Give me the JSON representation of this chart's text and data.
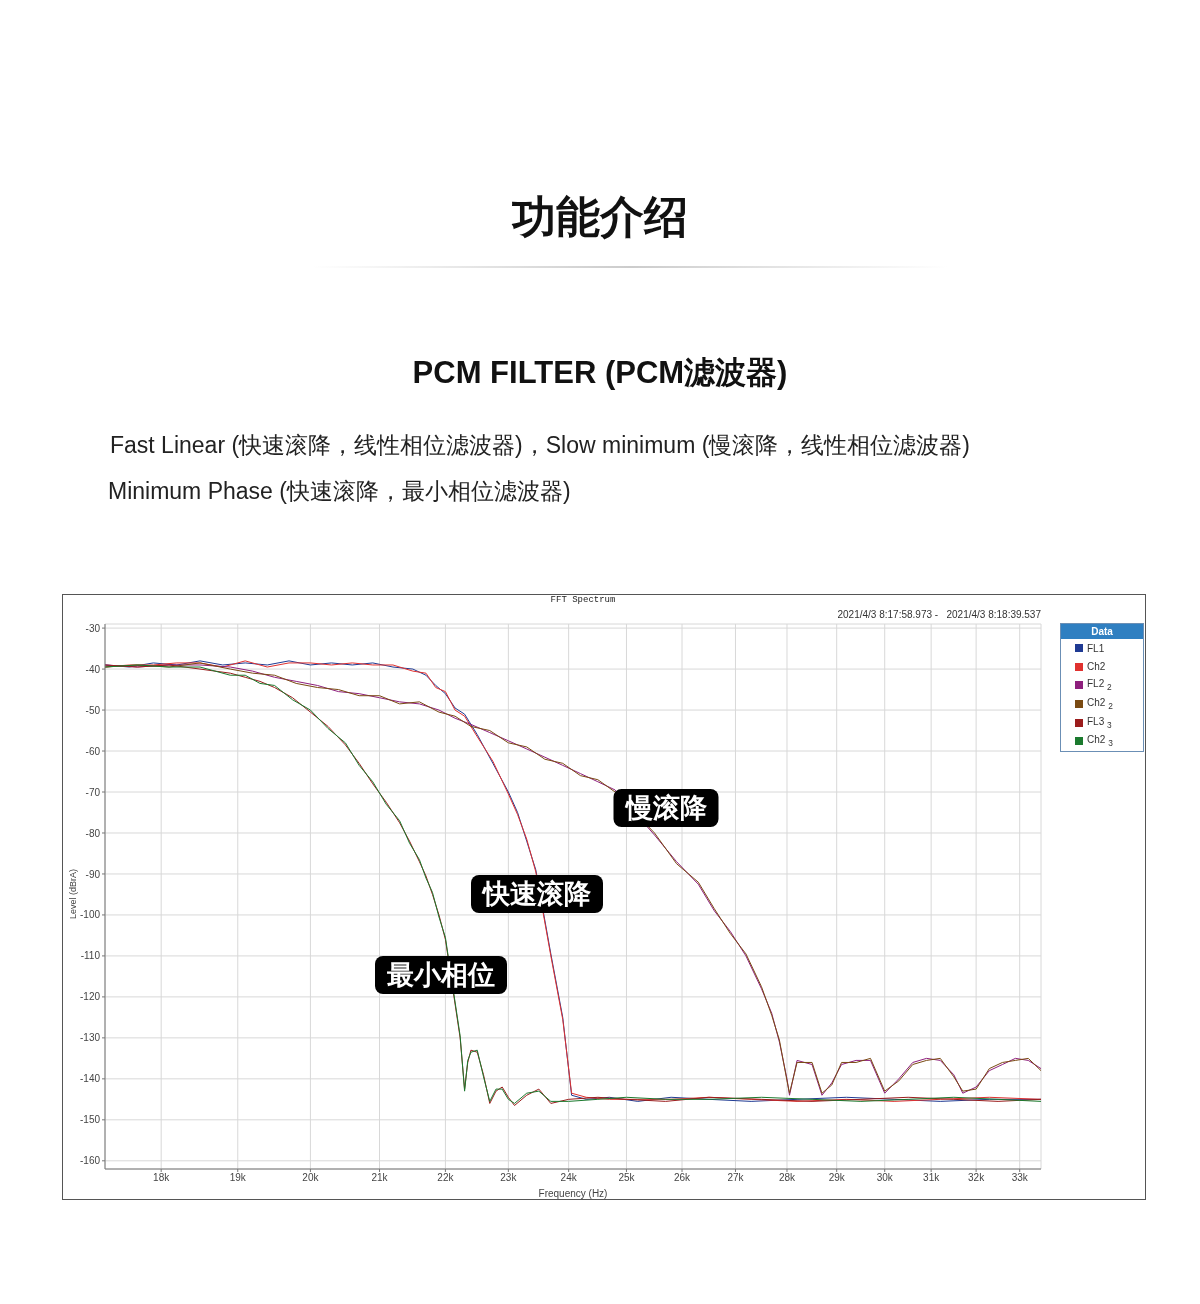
{
  "chart_data": {
    "type": "line",
    "title": "功能介绍",
    "subtitle": "PCM FILTER (PCM滤波器)",
    "xlabel": "Frequency (Hz)",
    "ylabel": "Level (dBrA)",
    "legend_title": "Data",
    "legend": "top right",
    "grid": true,
    "log": "x",
    "xlim": [
      17300,
      33500
    ],
    "xticks": [
      {
        "value": 18000,
        "label": "18k"
      },
      {
        "value": 19000,
        "label": "19k"
      },
      {
        "value": 20000,
        "label": "20k"
      },
      {
        "value": 21000,
        "label": "21k"
      },
      {
        "value": 22000,
        "label": "22k"
      },
      {
        "value": 23000,
        "label": "23k"
      },
      {
        "value": 24000,
        "label": "24k"
      },
      {
        "value": 25000,
        "label": "25k"
      },
      {
        "value": 26000,
        "label": "26k"
      },
      {
        "value": 27000,
        "label": "27k"
      },
      {
        "value": 28000,
        "label": "28k"
      },
      {
        "value": 29000,
        "label": "29k"
      },
      {
        "value": 30000,
        "label": "30k"
      },
      {
        "value": 31000,
        "label": "31k"
      },
      {
        "value": 32000,
        "label": "32k"
      },
      {
        "value": 33000,
        "label": "33k"
      }
    ],
    "ylim": [
      -162,
      -29
    ],
    "yticks": [
      -160,
      -150,
      -140,
      -130,
      -120,
      -110,
      -100,
      -90,
      -80,
      -70,
      -60,
      -50,
      -40,
      -30
    ],
    "annotations": [
      "Fast Linear (快速滚降，线性相位滤波器)，Slow minimum (慢滚降，线性相位滤波器)",
      "Minimum Phase (快速滚降，最小相位滤波器)",
      "FFT Spectrum",
      "2021/4/3 8:17:58.973 -   2021/4/3 8:18:39.537",
      "慢滚降",
      "快速滚降",
      "最小相位"
    ],
    "series": [
      {
        "name": "FL1",
        "color": "#1f3a93",
        "x": [
          17300,
          17600,
          17900,
          18200,
          18500,
          18800,
          19100,
          19400,
          19700,
          20000,
          20300,
          20600,
          20900,
          21200,
          21500,
          21700,
          21850,
          22000,
          22150,
          22300,
          22500,
          22750,
          23000,
          23150,
          23300,
          23450,
          23700,
          23900,
          24050,
          24300,
          24700,
          25200,
          25800,
          26500,
          27300,
          28200,
          29200,
          30200,
          31200,
          32300,
          33500
        ],
        "values": [
          -39,
          -39.5,
          -38.5,
          -39,
          -38,
          -39,
          -38.5,
          -39,
          -38,
          -39,
          -38.5,
          -39,
          -38.5,
          -39.5,
          -40,
          -41.5,
          -44,
          -46,
          -49.5,
          -51,
          -56,
          -63,
          -70,
          -75,
          -82,
          -89,
          -109.5,
          -125,
          -144,
          -145,
          -144.5,
          -145.5,
          -144.5,
          -145,
          -145.5,
          -145,
          -144.5,
          -145,
          -145.5,
          -145,
          -145
        ]
      },
      {
        "name": "Ch2",
        "color": "#e0312f",
        "x": [
          17300,
          17600,
          17900,
          18200,
          18500,
          18800,
          19100,
          19400,
          19700,
          20000,
          20300,
          20600,
          20900,
          21200,
          21500,
          21700,
          21850,
          22000,
          22150,
          22300,
          22500,
          22750,
          23000,
          23150,
          23300,
          23450,
          23700,
          23900,
          24050,
          24300,
          24700,
          25200,
          25800,
          26500,
          27300,
          28200,
          29200,
          30200,
          31200,
          32300,
          33500
        ],
        "values": [
          -39.5,
          -39,
          -39,
          -38.5,
          -38.5,
          -39.5,
          -38,
          -39.5,
          -38.5,
          -38.5,
          -39,
          -38.5,
          -39,
          -39,
          -40.5,
          -41,
          -44.5,
          -45.5,
          -50,
          -51.5,
          -56.5,
          -62.5,
          -70.5,
          -75.5,
          -81.5,
          -89.5,
          -110,
          -125.5,
          -143.5,
          -144.5,
          -145,
          -145,
          -145,
          -144.5,
          -145,
          -145.5,
          -145,
          -145.5,
          -145,
          -144.5,
          -145
        ]
      },
      {
        "name": "FL2 $_{2}$",
        "color": "#8e1f7d",
        "x": [
          17300,
          17700,
          18100,
          18500,
          18900,
          19200,
          19500,
          19800,
          20100,
          20400,
          20700,
          21000,
          21300,
          21600,
          21900,
          22150,
          22400,
          22700,
          23000,
          23300,
          23600,
          23900,
          24200,
          24500,
          24800,
          25500,
          25900,
          26300,
          26600,
          26900,
          27200,
          27500,
          27700,
          27850,
          28000,
          28050,
          28200,
          28500,
          28700,
          28900,
          29100,
          29400,
          29700,
          30000,
          30300,
          30600,
          30900,
          31200,
          31500,
          31700,
          32000,
          32300,
          32600,
          32900,
          33200,
          33500
        ],
        "values": [
          -39,
          -39.5,
          -39,
          -39,
          -39.5,
          -40.5,
          -42,
          -43,
          -44,
          -45.5,
          -46,
          -47,
          -48,
          -48.5,
          -50,
          -52,
          -53.5,
          -55.5,
          -57.5,
          -59.5,
          -61.5,
          -63.5,
          -65.5,
          -67.5,
          -69.5,
          -80.5,
          -87,
          -92.5,
          -99,
          -104,
          -110,
          -118,
          -124,
          -131,
          -140,
          -144,
          -135.5,
          -136.5,
          -144,
          -141,
          -136.5,
          -135.5,
          -135.5,
          -143.5,
          -140,
          -136,
          -135,
          -135.5,
          -139,
          -143.5,
          -142,
          -138,
          -136.5,
          -135,
          -135.5,
          -137.5
        ]
      },
      {
        "name": "Ch2 $_{2}$",
        "color": "#7a4a12",
        "x": [
          17300,
          17700,
          18100,
          18500,
          18900,
          19200,
          19500,
          19800,
          20100,
          20400,
          20700,
          21000,
          21300,
          21600,
          21900,
          22150,
          22400,
          22700,
          23000,
          23300,
          23600,
          23900,
          24200,
          24500,
          24800,
          25500,
          25900,
          26300,
          26600,
          26900,
          27200,
          27500,
          27700,
          27850,
          28000,
          28050,
          28200,
          28500,
          28700,
          28900,
          29100,
          29400,
          29700,
          30000,
          30300,
          30600,
          30900,
          31200,
          31500,
          31700,
          32000,
          32300,
          32600,
          32900,
          33200,
          33500
        ],
        "values": [
          -39.5,
          -39,
          -39.5,
          -38.5,
          -40,
          -41,
          -41.5,
          -43.5,
          -44.5,
          -45,
          -46.5,
          -46.5,
          -48.5,
          -48,
          -50.5,
          -51.5,
          -54,
          -55,
          -58,
          -59,
          -62,
          -63,
          -66,
          -67,
          -70,
          -80,
          -87.5,
          -92,
          -98.5,
          -104.5,
          -109.5,
          -117.5,
          -124.5,
          -130.5,
          -140.5,
          -143.5,
          -136,
          -136,
          -143.5,
          -141.5,
          -136,
          -136,
          -135,
          -143,
          -140.5,
          -136.5,
          -135.5,
          -135,
          -139.5,
          -143,
          -142.5,
          -137.5,
          -136,
          -135.5,
          -135,
          -138
        ]
      },
      {
        "name": "FL3 $_{3}$",
        "color": "#9b1c1c",
        "x": [
          17300,
          17700,
          18100,
          18500,
          18900,
          19100,
          19300,
          19500,
          19750,
          20000,
          20250,
          20500,
          20700,
          20900,
          21100,
          21300,
          21450,
          21600,
          21700,
          21800,
          21900,
          22000,
          22230,
          22300,
          22350,
          22400,
          22500,
          22600,
          22700,
          22800,
          22900,
          23000,
          23100,
          23300,
          23500,
          23700,
          24000,
          24500,
          25000,
          25700,
          26500,
          27500,
          28500,
          29500,
          30500,
          31500,
          32500,
          33500
        ],
        "values": [
          -39,
          -39.5,
          -39,
          -40,
          -41,
          -42,
          -43,
          -44.5,
          -47,
          -50.5,
          -54,
          -58.5,
          -63,
          -68,
          -72.5,
          -77.5,
          -82,
          -87,
          -90.5,
          -95,
          -100,
          -106,
          -130,
          -142.5,
          -136,
          -133,
          -133.5,
          -139,
          -146,
          -143,
          -142,
          -144.5,
          -146.5,
          -144,
          -142.5,
          -146,
          -145,
          -144.5,
          -145,
          -145.5,
          -144.5,
          -145,
          -145.5,
          -145,
          -144.5,
          -145,
          -145.5,
          -145
        ]
      },
      {
        "name": "Ch2 $_{3}$",
        "color": "#1b7a2e",
        "x": [
          17300,
          17700,
          18100,
          18500,
          18900,
          19100,
          19300,
          19500,
          19750,
          20000,
          20250,
          20500,
          20700,
          20900,
          21100,
          21300,
          21450,
          21600,
          21700,
          21800,
          21900,
          22000,
          22230,
          22300,
          22350,
          22400,
          22500,
          22600,
          22700,
          22800,
          22900,
          23000,
          23100,
          23300,
          23500,
          23700,
          24000,
          24500,
          25000,
          25700,
          26500,
          27500,
          28500,
          29500,
          30500,
          31500,
          32500,
          33500
        ],
        "values": [
          -39.5,
          -39,
          -39.5,
          -39.5,
          -41.5,
          -41.5,
          -43.5,
          -44,
          -47.5,
          -50,
          -54.5,
          -58,
          -63.5,
          -67.5,
          -73,
          -77,
          -82.5,
          -86.5,
          -91,
          -94.5,
          -100.5,
          -105.5,
          -129.5,
          -143,
          -135.5,
          -133.5,
          -133,
          -139.5,
          -145.5,
          -142.5,
          -142.5,
          -145,
          -146,
          -143.5,
          -143,
          -145.5,
          -145.5,
          -145,
          -144.5,
          -145,
          -145,
          -144.5,
          -145,
          -145.5,
          -145,
          -144.5,
          -145,
          -145.5
        ]
      }
    ]
  }
}
